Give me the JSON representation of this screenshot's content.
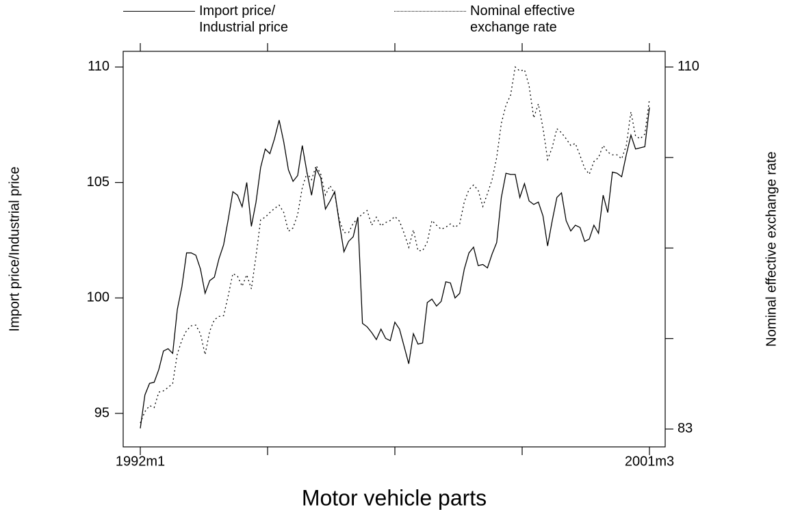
{
  "chart_data": {
    "type": "line",
    "title": "Motor vehicle parts",
    "y_label": "Import price/Industrial price",
    "y2_label": "Nominal effective exchange rate",
    "categories": [
      "1992m1",
      null,
      null,
      null,
      null,
      null,
      null,
      null,
      null,
      null,
      null,
      null,
      null,
      null,
      null,
      null,
      null,
      null,
      null,
      null,
      null,
      null,
      null,
      null,
      null,
      null,
      null,
      null,
      null,
      null,
      null,
      null,
      null,
      null,
      null,
      null,
      null,
      null,
      null,
      null,
      null,
      null,
      null,
      null,
      null,
      null,
      null,
      null,
      null,
      null,
      null,
      null,
      null,
      null,
      null,
      null,
      null,
      null,
      null,
      null,
      null,
      null,
      null,
      null,
      null,
      null,
      null,
      null,
      null,
      null,
      null,
      null,
      null,
      null,
      null,
      null,
      null,
      null,
      null,
      null,
      null,
      null,
      null,
      null,
      null,
      null,
      null,
      null,
      null,
      null,
      null,
      null,
      null,
      null,
      null,
      null,
      null,
      null,
      null,
      null,
      null,
      null,
      null,
      null,
      null,
      null,
      null,
      null,
      null,
      null,
      "2001m3"
    ],
    "ylim": [
      93.55,
      110.68
    ],
    "yticks": [
      95,
      100,
      105,
      110
    ],
    "y2lim": [
      81.67,
      111.17
    ],
    "y2ticks": [
      83,
      110
    ],
    "series": [
      {
        "name": "Import price/ Industrial price",
        "color": "#000000",
        "linestyle": "solid",
        "axis": "y",
        "values": [
          94.35,
          95.8,
          96.3,
          96.35,
          96.9,
          97.7,
          97.8,
          97.6,
          99.5,
          100.5,
          101.95,
          101.95,
          101.85,
          101.25,
          100.2,
          100.75,
          100.9,
          101.7,
          102.3,
          103.4,
          104.6,
          104.45,
          103.95,
          105.0,
          103.1,
          104.15,
          105.65,
          106.45,
          106.25,
          106.9,
          107.7,
          106.75,
          105.55,
          105.05,
          105.3,
          106.6,
          105.45,
          104.45,
          105.6,
          105.2,
          103.85,
          104.2,
          104.6,
          103.25,
          102.0,
          102.45,
          102.65,
          103.5,
          98.9,
          98.75,
          98.5,
          98.2,
          98.65,
          98.25,
          98.15,
          98.95,
          98.65,
          97.9,
          97.15,
          98.45,
          98.0,
          98.05,
          99.8,
          99.95,
          99.65,
          99.85,
          100.7,
          100.65,
          100.0,
          100.2,
          101.25,
          101.95,
          102.2,
          101.4,
          101.45,
          101.3,
          101.9,
          102.4,
          104.35,
          105.4,
          105.35,
          105.35,
          104.35,
          104.95,
          104.2,
          104.05,
          104.15,
          103.55,
          102.25,
          103.35,
          104.35,
          104.55,
          103.35,
          102.9,
          103.15,
          103.05,
          102.45,
          102.55,
          103.15,
          102.8,
          104.45,
          103.7,
          105.45,
          105.4,
          105.25,
          106.2,
          107.05,
          106.45,
          106.5,
          106.55,
          108.25
        ]
      },
      {
        "name": "Nominal effective exchange rate",
        "color": "#000000",
        "linestyle": "dotted",
        "axis": "y2",
        "values": [
          83.45,
          84.3,
          84.75,
          84.6,
          85.75,
          85.85,
          86.1,
          86.4,
          88.6,
          89.65,
          90.35,
          90.7,
          90.75,
          90.1,
          88.55,
          90.3,
          91.15,
          91.4,
          91.45,
          92.95,
          94.6,
          94.4,
          93.65,
          94.5,
          93.45,
          95.9,
          98.6,
          98.8,
          99.15,
          99.45,
          99.7,
          99.15,
          97.75,
          98.0,
          99.0,
          101.0,
          102.1,
          101.6,
          102.65,
          102.0,
          100.45,
          101.15,
          100.55,
          98.6,
          97.65,
          97.65,
          98.35,
          98.7,
          99.05,
          99.3,
          98.2,
          98.8,
          98.15,
          98.4,
          98.55,
          98.85,
          98.5,
          97.6,
          96.55,
          97.85,
          96.3,
          96.3,
          96.95,
          98.55,
          98.2,
          97.9,
          98.05,
          98.3,
          98.05,
          98.3,
          99.95,
          100.85,
          101.2,
          100.8,
          99.6,
          100.55,
          101.6,
          103.25,
          105.8,
          107.15,
          107.9,
          110.0,
          109.7,
          109.8,
          108.6,
          106.2,
          107.25,
          105.45,
          103.1,
          104.0,
          105.4,
          105.1,
          104.65,
          104.15,
          104.3,
          103.4,
          102.45,
          102.0,
          102.95,
          103.25,
          104.15,
          103.65,
          103.45,
          103.45,
          103.15,
          104.15,
          106.65,
          104.85,
          104.65,
          105.0,
          107.6
        ]
      }
    ]
  }
}
